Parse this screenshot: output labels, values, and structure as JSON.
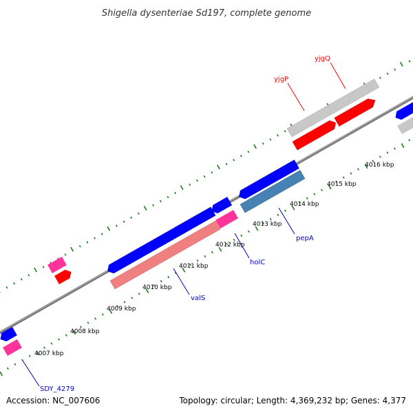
{
  "title": "Shigella dysenteriae Sd197, complete genome",
  "accession": "Accession: NC_007606",
  "topology": "Topology: circular; Length: 4,369,232 bp; Genes: 4,377",
  "ticks": [
    {
      "label": "4007 kbp"
    },
    {
      "label": "4008 kbp"
    },
    {
      "label": "4009 kbp"
    },
    {
      "label": "4010 kbp"
    },
    {
      "label": "4011 kbp"
    },
    {
      "label": "4012 kbp"
    },
    {
      "label": "4013 kbp"
    },
    {
      "label": "4014 kbp"
    },
    {
      "label": "4015 kbp"
    },
    {
      "label": "4016 kbp"
    }
  ],
  "gene_labels": [
    {
      "name": "yjgQ",
      "color": "#ff0000"
    },
    {
      "name": "yjgP",
      "color": "#ff0000"
    },
    {
      "name": "pepA",
      "color": "#0000cc"
    },
    {
      "name": "holC",
      "color": "#0000cc"
    },
    {
      "name": "valS",
      "color": "#0000cc"
    },
    {
      "name": "SDY_4279",
      "color": "#0000cc"
    }
  ],
  "colors": {
    "cds": "#0000ff",
    "cds_reverse": "#ff0000",
    "rna": "#ff3399",
    "gene_light": "#f08080",
    "gene_steel": "#4682b4",
    "gene_grey": "#c8c8c8",
    "backbone": "#7a7a7a",
    "tick": "#1a7a1a"
  }
}
